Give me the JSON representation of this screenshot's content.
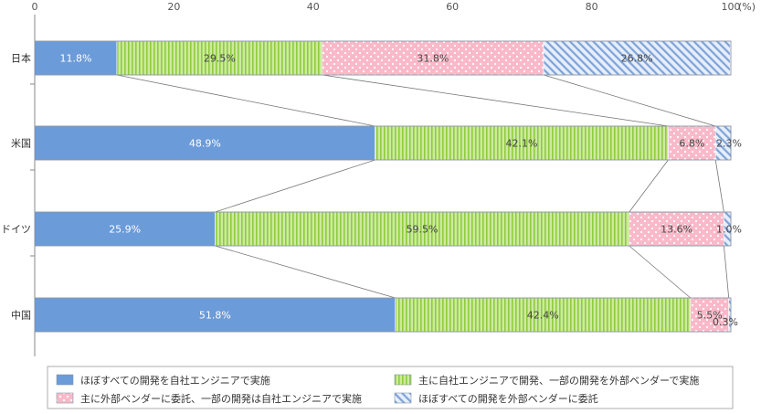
{
  "chart_data": {
    "type": "bar",
    "orientation": "horizontal",
    "stacked": true,
    "categories": [
      "日本",
      "米国",
      "ドイツ",
      "中国"
    ],
    "series": [
      {
        "name": "ほぼすべての開発を自社エンジニアで実施",
        "values": [
          11.8,
          48.9,
          25.9,
          51.8
        ],
        "labels": [
          "11.8%",
          "48.9%",
          "25.9%",
          "51.8%"
        ],
        "color": "#6b9bd8",
        "pattern": "solid"
      },
      {
        "name": "主に自社エンジニアで開発、一部の開発を外部ベンダーで実施",
        "values": [
          29.5,
          42.1,
          59.5,
          42.4
        ],
        "labels": [
          "29.5%",
          "42.1%",
          "59.5%",
          "42.4%"
        ],
        "color": "#a8d85e",
        "pattern": "vertical-stripes"
      },
      {
        "name": "主に外部ベンダーに委託、一部の開発は自社エンジニアで実施",
        "values": [
          31.8,
          6.8,
          13.6,
          5.5
        ],
        "labels": [
          "31.8%",
          "6.8%",
          "13.6%",
          "5.5%"
        ],
        "color": "#f8b8c8",
        "pattern": "dots"
      },
      {
        "name": "ほぼすべての開発を外部ベンダーに委託",
        "values": [
          26.8,
          2.3,
          1.0,
          0.3
        ],
        "labels": [
          "26.8%",
          "2.3%",
          "1.0%",
          "0.3%"
        ],
        "color": "#7a9fd6",
        "pattern": "diagonal-hatch"
      }
    ],
    "xlim": [
      0,
      100
    ],
    "xticks": [
      "0",
      "20",
      "40",
      "60",
      "80",
      "100"
    ],
    "x_unit": "(%)",
    "grid": false,
    "legend_position": "bottom"
  }
}
